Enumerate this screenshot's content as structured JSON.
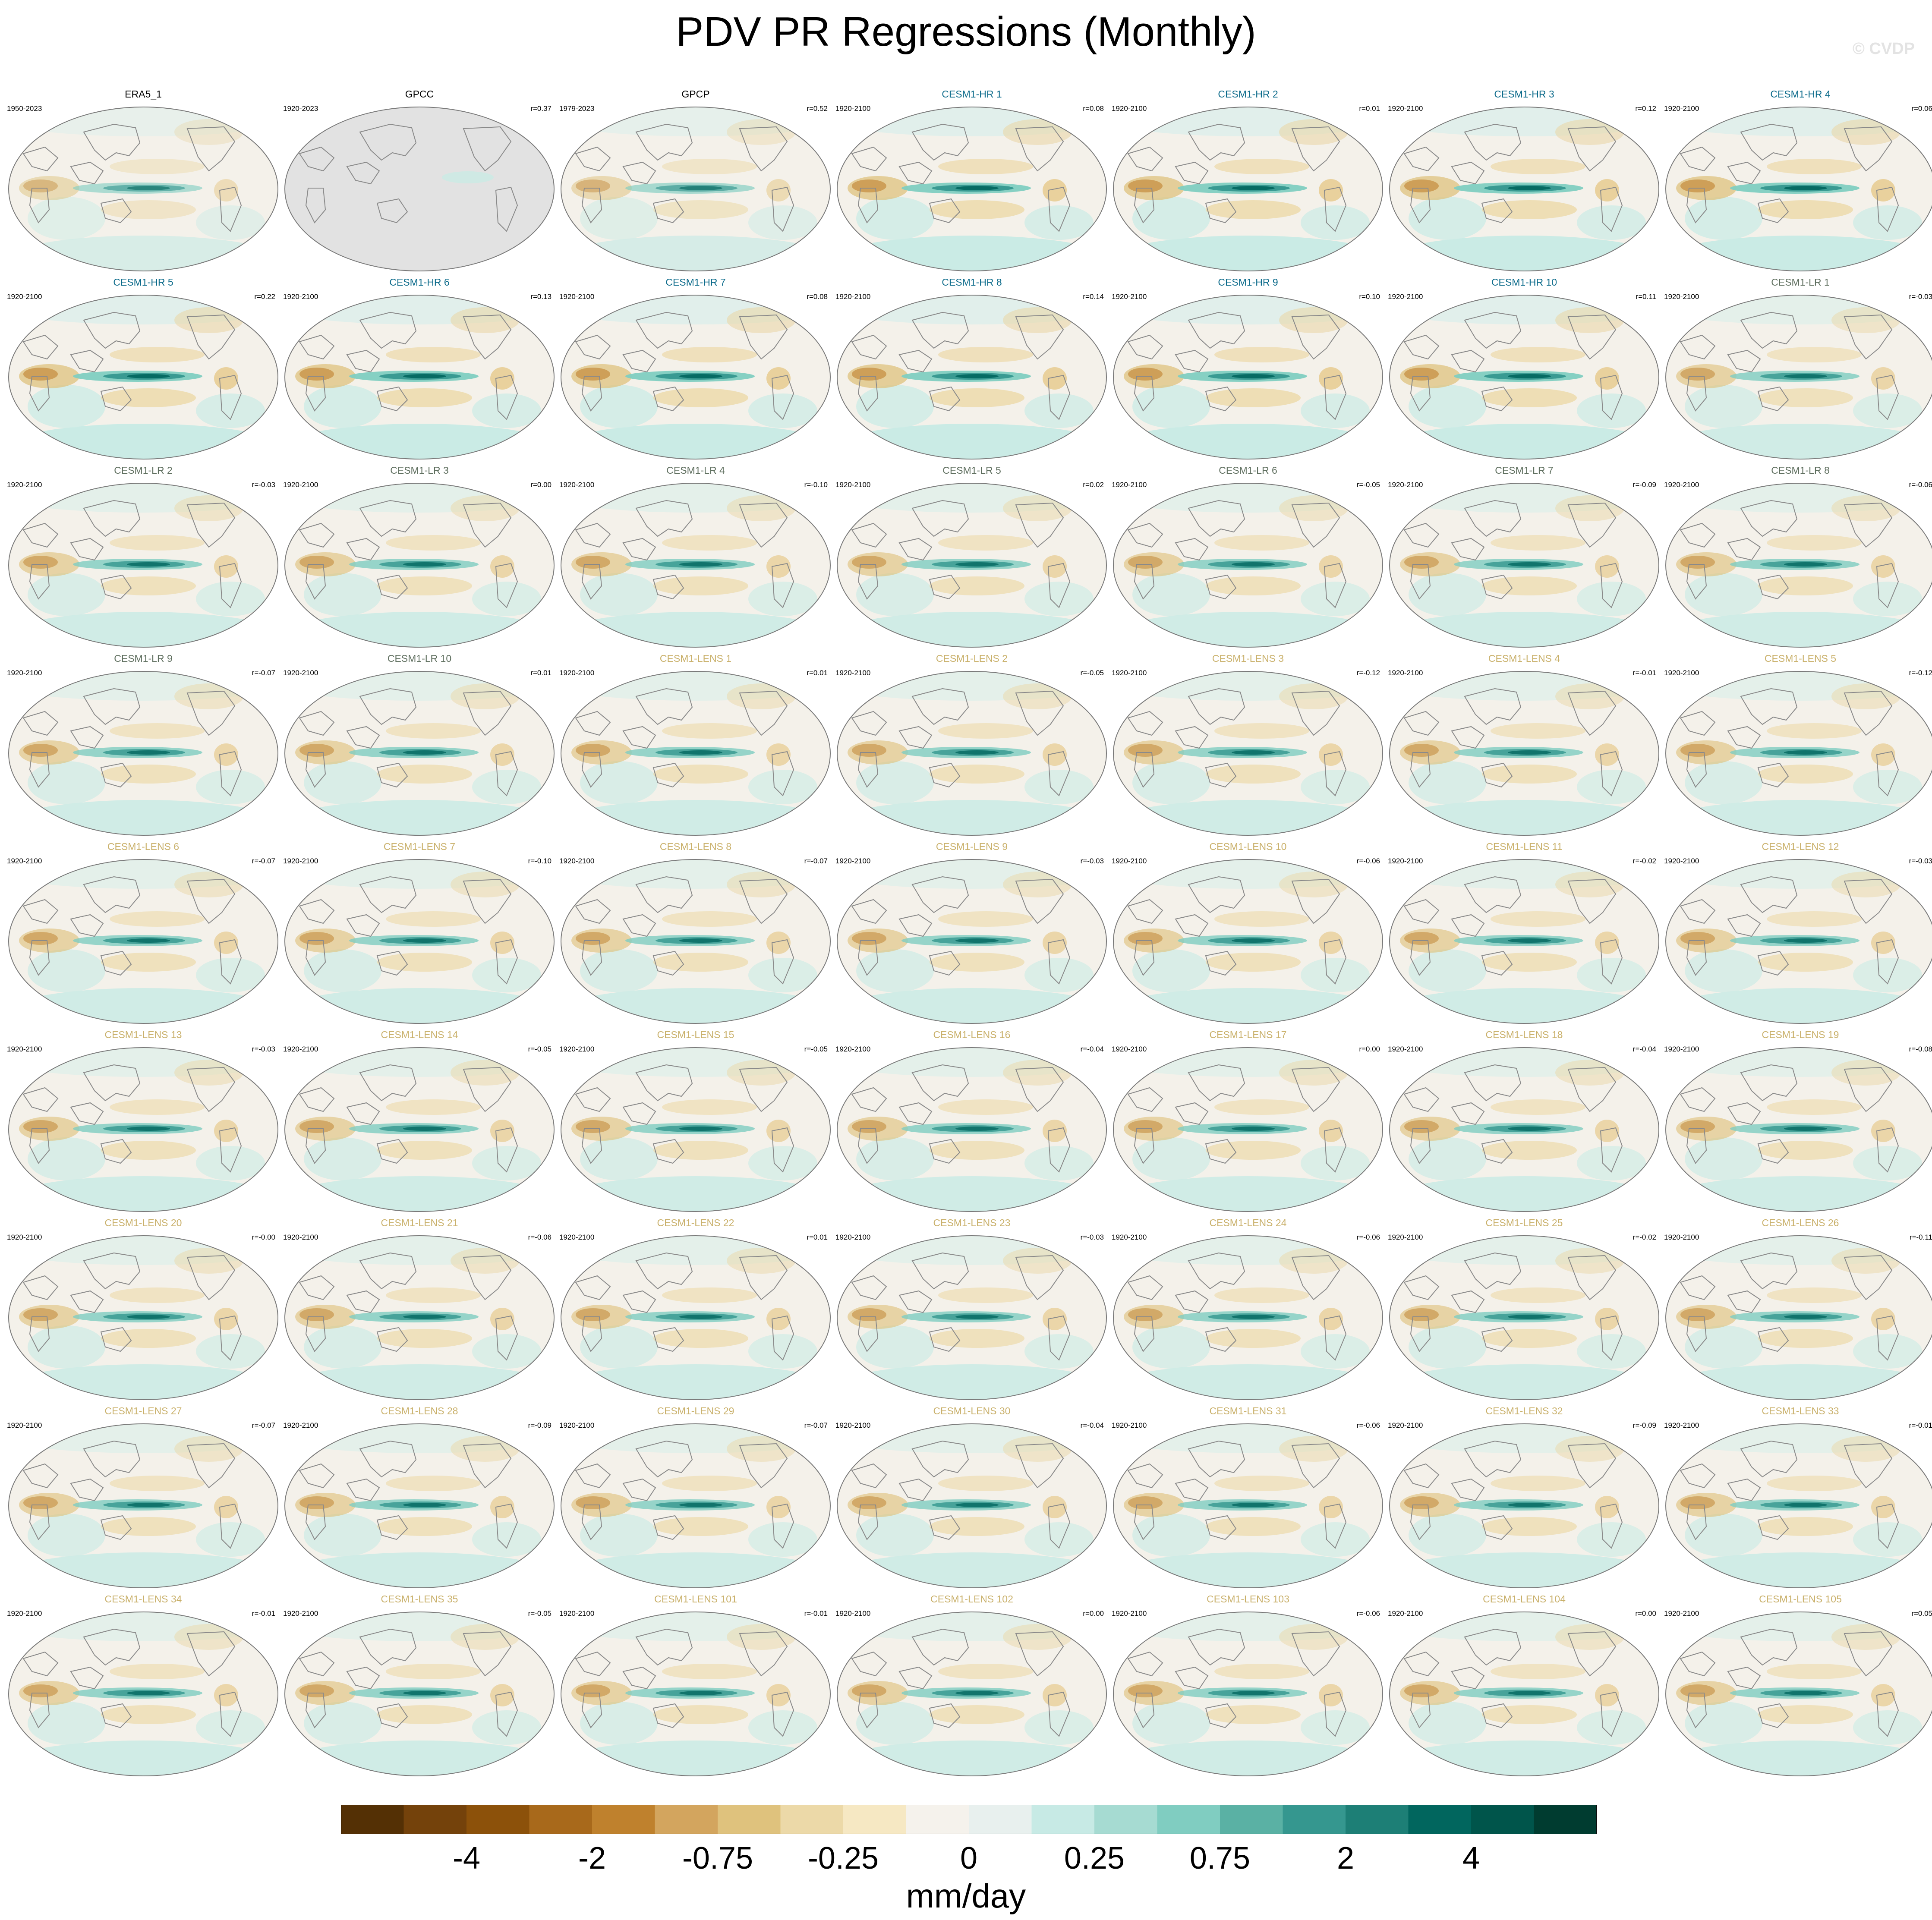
{
  "figure": {
    "title": "PDV PR Regressions (Monthly)",
    "watermark": "© CVDP"
  },
  "colors": {
    "obs_title": "#000000",
    "hr_title": "#0b6a8a",
    "lr_title": "#5f6f5f",
    "lens_title": "#c9b06a",
    "land_line": "#8a8a8a",
    "missing": "#e2e2e2"
  },
  "colorbar": {
    "units": "mm/day",
    "colors": [
      "#543005",
      "#74420b",
      "#8c510a",
      "#a8691b",
      "#bf812d",
      "#d3a55e",
      "#dfc27d",
      "#ecd9a8",
      "#f6e8c3",
      "#f5f2ec",
      "#e8f0ee",
      "#c7eae5",
      "#a6dbd2",
      "#80cdc1",
      "#5ab1a4",
      "#35978f",
      "#1d7f76",
      "#01665e",
      "#00554b",
      "#003c30"
    ],
    "tick_labels": [
      "-4",
      "-2",
      "-0.75",
      "-0.25",
      "0",
      "0.25",
      "0.75",
      "2",
      "4"
    ]
  },
  "chart_data": {
    "type": "heatmap",
    "description_of_fields": "map panels; each panel title, analysis period and pattern correlation r",
    "panels": [
      {
        "title": "ERA5_1",
        "period": "1950-2023",
        "corr": "",
        "group": "obs",
        "strength": 0.65,
        "missing": false
      },
      {
        "title": "GPCC",
        "period": "1920-2023",
        "corr": "r=0.37",
        "group": "obs",
        "strength": 0.15,
        "missing": true
      },
      {
        "title": "GPCP",
        "period": "1979-2023",
        "corr": "r=0.52",
        "group": "obs",
        "strength": 0.7,
        "missing": false
      },
      {
        "title": "CESM1-HR 1",
        "period": "1920-2100",
        "corr": "r=0.08",
        "group": "hr",
        "strength": 1.0,
        "missing": false
      },
      {
        "title": "CESM1-HR 2",
        "period": "1920-2100",
        "corr": "r=0.01",
        "group": "hr",
        "strength": 1.0,
        "missing": false
      },
      {
        "title": "CESM1-HR 3",
        "period": "1920-2100",
        "corr": "r=0.12",
        "group": "hr",
        "strength": 1.0,
        "missing": false
      },
      {
        "title": "CESM1-HR 4",
        "period": "1920-2100",
        "corr": "r=0.06",
        "group": "hr",
        "strength": 1.0,
        "missing": false
      },
      {
        "title": "CESM1-HR 5",
        "period": "1920-2100",
        "corr": "r=0.22",
        "group": "hr",
        "strength": 1.0,
        "missing": false
      },
      {
        "title": "CESM1-HR 6",
        "period": "1920-2100",
        "corr": "r=0.13",
        "group": "hr",
        "strength": 1.0,
        "missing": false
      },
      {
        "title": "CESM1-HR 7",
        "period": "1920-2100",
        "corr": "r=0.08",
        "group": "hr",
        "strength": 1.0,
        "missing": false
      },
      {
        "title": "CESM1-HR 8",
        "period": "1920-2100",
        "corr": "r=0.14",
        "group": "hr",
        "strength": 1.0,
        "missing": false
      },
      {
        "title": "CESM1-HR 9",
        "period": "1920-2100",
        "corr": "r=0.10",
        "group": "hr",
        "strength": 1.0,
        "missing": false
      },
      {
        "title": "CESM1-HR 10",
        "period": "1920-2100",
        "corr": "r=0.11",
        "group": "hr",
        "strength": 1.0,
        "missing": false
      },
      {
        "title": "CESM1-LR 1",
        "period": "1920-2100",
        "corr": "r=-0.03",
        "group": "lr",
        "strength": 0.85,
        "missing": false
      },
      {
        "title": "CESM1-LR 2",
        "period": "1920-2100",
        "corr": "r=-0.03",
        "group": "lr",
        "strength": 0.85,
        "missing": false
      },
      {
        "title": "CESM1-LR 3",
        "period": "1920-2100",
        "corr": "r=0.00",
        "group": "lr",
        "strength": 0.85,
        "missing": false
      },
      {
        "title": "CESM1-LR 4",
        "period": "1920-2100",
        "corr": "r=-0.10",
        "group": "lr",
        "strength": 0.85,
        "missing": false
      },
      {
        "title": "CESM1-LR 5",
        "period": "1920-2100",
        "corr": "r=0.02",
        "group": "lr",
        "strength": 0.85,
        "missing": false
      },
      {
        "title": "CESM1-LR 6",
        "period": "1920-2100",
        "corr": "r=-0.05",
        "group": "lr",
        "strength": 0.85,
        "missing": false
      },
      {
        "title": "CESM1-LR 7",
        "period": "1920-2100",
        "corr": "r=-0.09",
        "group": "lr",
        "strength": 0.85,
        "missing": false
      },
      {
        "title": "CESM1-LR 8",
        "period": "1920-2100",
        "corr": "r=-0.06",
        "group": "lr",
        "strength": 0.85,
        "missing": false
      },
      {
        "title": "CESM1-LR 9",
        "period": "1920-2100",
        "corr": "r=-0.07",
        "group": "lr",
        "strength": 0.85,
        "missing": false
      },
      {
        "title": "CESM1-LR 10",
        "period": "1920-2100",
        "corr": "r=0.01",
        "group": "lr",
        "strength": 0.85,
        "missing": false
      },
      {
        "title": "CESM1-LENS 1",
        "period": "1920-2100",
        "corr": "r=0.01",
        "group": "lens",
        "strength": 0.85,
        "missing": false
      },
      {
        "title": "CESM1-LENS 2",
        "period": "1920-2100",
        "corr": "r=-0.05",
        "group": "lens",
        "strength": 0.85,
        "missing": false
      },
      {
        "title": "CESM1-LENS 3",
        "period": "1920-2100",
        "corr": "r=-0.12",
        "group": "lens",
        "strength": 0.85,
        "missing": false
      },
      {
        "title": "CESM1-LENS 4",
        "period": "1920-2100",
        "corr": "r=-0.01",
        "group": "lens",
        "strength": 0.85,
        "missing": false
      },
      {
        "title": "CESM1-LENS 5",
        "period": "1920-2100",
        "corr": "r=-0.12",
        "group": "lens",
        "strength": 0.85,
        "missing": false
      },
      {
        "title": "CESM1-LENS 6",
        "period": "1920-2100",
        "corr": "r=-0.07",
        "group": "lens",
        "strength": 0.85,
        "missing": false
      },
      {
        "title": "CESM1-LENS 7",
        "period": "1920-2100",
        "corr": "r=-0.10",
        "group": "lens",
        "strength": 0.85,
        "missing": false
      },
      {
        "title": "CESM1-LENS 8",
        "period": "1920-2100",
        "corr": "r=-0.07",
        "group": "lens",
        "strength": 0.85,
        "missing": false
      },
      {
        "title": "CESM1-LENS 9",
        "period": "1920-2100",
        "corr": "r=-0.03",
        "group": "lens",
        "strength": 0.85,
        "missing": false
      },
      {
        "title": "CESM1-LENS 10",
        "period": "1920-2100",
        "corr": "r=-0.06",
        "group": "lens",
        "strength": 0.85,
        "missing": false
      },
      {
        "title": "CESM1-LENS 11",
        "period": "1920-2100",
        "corr": "r=-0.02",
        "group": "lens",
        "strength": 0.85,
        "missing": false
      },
      {
        "title": "CESM1-LENS 12",
        "period": "1920-2100",
        "corr": "r=-0.03",
        "group": "lens",
        "strength": 0.85,
        "missing": false
      },
      {
        "title": "CESM1-LENS 13",
        "period": "1920-2100",
        "corr": "r=-0.03",
        "group": "lens",
        "strength": 0.85,
        "missing": false
      },
      {
        "title": "CESM1-LENS 14",
        "period": "1920-2100",
        "corr": "r=-0.05",
        "group": "lens",
        "strength": 0.85,
        "missing": false
      },
      {
        "title": "CESM1-LENS 15",
        "period": "1920-2100",
        "corr": "r=-0.05",
        "group": "lens",
        "strength": 0.85,
        "missing": false
      },
      {
        "title": "CESM1-LENS 16",
        "period": "1920-2100",
        "corr": "r=-0.04",
        "group": "lens",
        "strength": 0.85,
        "missing": false
      },
      {
        "title": "CESM1-LENS 17",
        "period": "1920-2100",
        "corr": "r=0.00",
        "group": "lens",
        "strength": 0.85,
        "missing": false
      },
      {
        "title": "CESM1-LENS 18",
        "period": "1920-2100",
        "corr": "r=-0.04",
        "group": "lens",
        "strength": 0.85,
        "missing": false
      },
      {
        "title": "CESM1-LENS 19",
        "period": "1920-2100",
        "corr": "r=-0.08",
        "group": "lens",
        "strength": 0.85,
        "missing": false
      },
      {
        "title": "CESM1-LENS 20",
        "period": "1920-2100",
        "corr": "r=-0.00",
        "group": "lens",
        "strength": 0.85,
        "missing": false
      },
      {
        "title": "CESM1-LENS 21",
        "period": "1920-2100",
        "corr": "r=-0.06",
        "group": "lens",
        "strength": 0.85,
        "missing": false
      },
      {
        "title": "CESM1-LENS 22",
        "period": "1920-2100",
        "corr": "r=0.01",
        "group": "lens",
        "strength": 0.85,
        "missing": false
      },
      {
        "title": "CESM1-LENS 23",
        "period": "1920-2100",
        "corr": "r=-0.03",
        "group": "lens",
        "strength": 0.85,
        "missing": false
      },
      {
        "title": "CESM1-LENS 24",
        "period": "1920-2100",
        "corr": "r=-0.06",
        "group": "lens",
        "strength": 0.85,
        "missing": false
      },
      {
        "title": "CESM1-LENS 25",
        "period": "1920-2100",
        "corr": "r=-0.02",
        "group": "lens",
        "strength": 0.85,
        "missing": false
      },
      {
        "title": "CESM1-LENS 26",
        "period": "1920-2100",
        "corr": "r=-0.11",
        "group": "lens",
        "strength": 0.85,
        "missing": false
      },
      {
        "title": "CESM1-LENS 27",
        "period": "1920-2100",
        "corr": "r=-0.07",
        "group": "lens",
        "strength": 0.85,
        "missing": false
      },
      {
        "title": "CESM1-LENS 28",
        "period": "1920-2100",
        "corr": "r=-0.09",
        "group": "lens",
        "strength": 0.85,
        "missing": false
      },
      {
        "title": "CESM1-LENS 29",
        "period": "1920-2100",
        "corr": "r=-0.07",
        "group": "lens",
        "strength": 0.85,
        "missing": false
      },
      {
        "title": "CESM1-LENS 30",
        "period": "1920-2100",
        "corr": "r=-0.04",
        "group": "lens",
        "strength": 0.85,
        "missing": false
      },
      {
        "title": "CESM1-LENS 31",
        "period": "1920-2100",
        "corr": "r=-0.06",
        "group": "lens",
        "strength": 0.85,
        "missing": false
      },
      {
        "title": "CESM1-LENS 32",
        "period": "1920-2100",
        "corr": "r=-0.09",
        "group": "lens",
        "strength": 0.85,
        "missing": false
      },
      {
        "title": "CESM1-LENS 33",
        "period": "1920-2100",
        "corr": "r=-0.01",
        "group": "lens",
        "strength": 0.85,
        "missing": false
      },
      {
        "title": "CESM1-LENS 34",
        "period": "1920-2100",
        "corr": "r=-0.01",
        "group": "lens",
        "strength": 0.85,
        "missing": false
      },
      {
        "title": "CESM1-LENS 35",
        "period": "1920-2100",
        "corr": "r=-0.05",
        "group": "lens",
        "strength": 0.85,
        "missing": false
      },
      {
        "title": "CESM1-LENS 101",
        "period": "1920-2100",
        "corr": "r=-0.01",
        "group": "lens",
        "strength": 0.85,
        "missing": false
      },
      {
        "title": "CESM1-LENS 102",
        "period": "1920-2100",
        "corr": "r=0.00",
        "group": "lens",
        "strength": 0.85,
        "missing": false
      },
      {
        "title": "CESM1-LENS 103",
        "period": "1920-2100",
        "corr": "r=-0.06",
        "group": "lens",
        "strength": 0.85,
        "missing": false
      },
      {
        "title": "CESM1-LENS 104",
        "period": "1920-2100",
        "corr": "r=0.00",
        "group": "lens",
        "strength": 0.85,
        "missing": false
      },
      {
        "title": "CESM1-LENS 105",
        "period": "1920-2100",
        "corr": "r=0.05",
        "group": "lens",
        "strength": 0.85,
        "missing": false
      }
    ],
    "colorbar_ticks": [
      "-4",
      "-2",
      "-0.75",
      "-0.25",
      "0",
      "0.25",
      "0.75",
      "2",
      "4"
    ]
  }
}
